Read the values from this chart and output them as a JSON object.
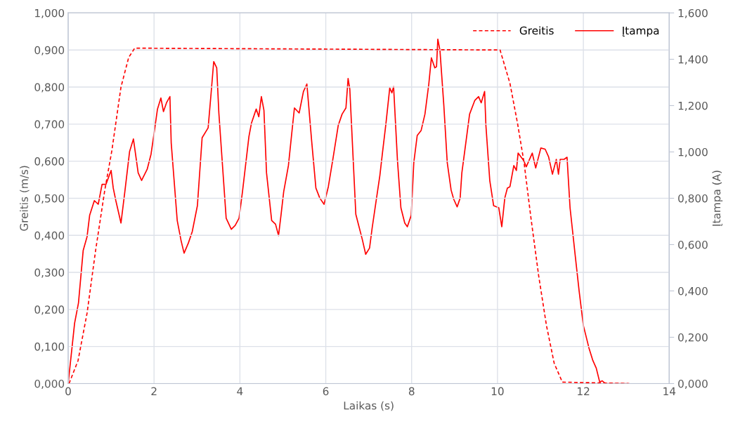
{
  "chart_data": {
    "type": "line",
    "xlabel": "Laikas (s)",
    "ylabel": "Greitis (m/s)",
    "y2label": "Įtampa (A)",
    "xlim": [
      0,
      14
    ],
    "xticks": [
      0,
      2,
      4,
      6,
      8,
      10,
      12,
      14
    ],
    "ylim": [
      0,
      1
    ],
    "yticks": [
      {
        "value": 0,
        "label": "0,000"
      },
      {
        "value": 0.1,
        "label": "0,100"
      },
      {
        "value": 0.2,
        "label": "0,200"
      },
      {
        "value": 0.3,
        "label": "0,300"
      },
      {
        "value": 0.4,
        "label": "0,400"
      },
      {
        "value": 0.5,
        "label": "0,500"
      },
      {
        "value": 0.6,
        "label": "0,600"
      },
      {
        "value": 0.7,
        "label": "0,700"
      },
      {
        "value": 0.8,
        "label": "0,800"
      },
      {
        "value": 0.9,
        "label": "0,900"
      },
      {
        "value": 1,
        "label": "1,000"
      }
    ],
    "y2lim": [
      0,
      1.6
    ],
    "y2ticks": [
      {
        "value": 0,
        "label": "0,000"
      },
      {
        "value": 0.2,
        "label": "0,200"
      },
      {
        "value": 0.4,
        "label": "0,400"
      },
      {
        "value": 0.6,
        "label": "0,600"
      },
      {
        "value": 0.8,
        "label": "0,800"
      },
      {
        "value": 1,
        "label": "1,000"
      },
      {
        "value": 1.2,
        "label": "1,200"
      },
      {
        "value": 1.4,
        "label": "1,400"
      },
      {
        "value": 1.6,
        "label": "1,600"
      }
    ],
    "grid": true,
    "legend": "top right",
    "series": [
      {
        "name": "Greitis",
        "color": "#ff0000",
        "line_style": "dashed",
        "x": [
          0.02,
          0.23,
          0.44,
          0.64,
          0.85,
          1.02,
          1.23,
          1.41,
          1.55,
          10.06,
          10.29,
          10.47,
          10.62,
          10.78,
          10.96,
          11.14,
          11.32,
          11.51,
          13.06
        ],
        "values": [
          0.0,
          0.062,
          0.19,
          0.36,
          0.52,
          0.63,
          0.8,
          0.88,
          0.905,
          0.9,
          0.81,
          0.7,
          0.595,
          0.446,
          0.29,
          0.157,
          0.055,
          0.004,
          0.0
        ]
      },
      {
        "name": "Įtampa",
        "color": "#ff0000",
        "line_style": "solid",
        "axis": "y2",
        "x": [
          0.0,
          0.15,
          0.24,
          0.35,
          0.44,
          0.5,
          0.61,
          0.7,
          0.79,
          0.88,
          1.0,
          1.05,
          1.11,
          1.23,
          1.32,
          1.43,
          1.52,
          1.63,
          1.71,
          1.84,
          1.93,
          1.99,
          2.08,
          2.16,
          2.22,
          2.29,
          2.37,
          2.4,
          2.54,
          2.63,
          2.7,
          2.8,
          2.89,
          3.01,
          3.12,
          3.26,
          3.33,
          3.39,
          3.46,
          3.51,
          3.68,
          3.8,
          3.89,
          3.98,
          4.06,
          4.21,
          4.27,
          4.38,
          4.44,
          4.5,
          4.56,
          4.62,
          4.74,
          4.83,
          4.9,
          4.96,
          5.02,
          5.13,
          5.2,
          5.27,
          5.38,
          5.48,
          5.56,
          5.67,
          5.77,
          5.86,
          5.96,
          6.06,
          6.17,
          6.29,
          6.38,
          6.47,
          6.52,
          6.56,
          6.7,
          6.85,
          6.93,
          7.02,
          7.08,
          7.17,
          7.26,
          7.32,
          7.4,
          7.49,
          7.54,
          7.58,
          7.67,
          7.75,
          7.84,
          7.9,
          7.99,
          8.05,
          8.13,
          8.22,
          8.31,
          8.4,
          8.46,
          8.54,
          8.58,
          8.61,
          8.66,
          8.75,
          8.83,
          8.92,
          8.98,
          9.06,
          9.13,
          9.17,
          9.27,
          9.35,
          9.47,
          9.56,
          9.62,
          9.7,
          9.73,
          9.82,
          9.91,
          10.03,
          10.1,
          10.17,
          10.23,
          10.29,
          10.38,
          10.44,
          10.48,
          10.61,
          10.67,
          10.81,
          10.89,
          11.01,
          11.11,
          11.19,
          11.28,
          11.37,
          11.42,
          11.46,
          11.55,
          11.62,
          11.69,
          11.81,
          11.9,
          12.0,
          12.13,
          12.22,
          12.3,
          12.38,
          12.44,
          12.51,
          13.06
        ],
        "values": [
          0,
          0.261,
          0.348,
          0.575,
          0.634,
          0.726,
          0.79,
          0.774,
          0.86,
          0.86,
          0.92,
          0.844,
          0.79,
          0.693,
          0.828,
          1.001,
          1.056,
          0.91,
          0.877,
          0.925,
          0.99,
          1.066,
          1.185,
          1.233,
          1.174,
          1.212,
          1.239,
          1.039,
          0.704,
          0.617,
          0.563,
          0.607,
          0.656,
          0.768,
          1.061,
          1.104,
          1.255,
          1.39,
          1.363,
          1.168,
          0.714,
          0.666,
          0.683,
          0.714,
          0.828,
          1.066,
          1.125,
          1.185,
          1.152,
          1.239,
          1.18,
          0.91,
          0.704,
          0.688,
          0.639,
          0.731,
          0.828,
          0.941,
          1.066,
          1.19,
          1.168,
          1.261,
          1.293,
          1.05,
          0.844,
          0.801,
          0.774,
          0.85,
          0.974,
          1.114,
          1.163,
          1.19,
          1.317,
          1.271,
          0.731,
          0.623,
          0.558,
          0.585,
          0.671,
          0.785,
          0.898,
          0.995,
          1.12,
          1.276,
          1.255,
          1.282,
          0.963,
          0.759,
          0.693,
          0.677,
          0.726,
          0.953,
          1.071,
          1.092,
          1.163,
          1.293,
          1.406,
          1.363,
          1.368,
          1.487,
          1.438,
          1.201,
          0.953,
          0.835,
          0.796,
          0.763,
          0.801,
          0.91,
          1.05,
          1.163,
          1.222,
          1.239,
          1.212,
          1.261,
          1.114,
          0.877,
          0.768,
          0.759,
          0.677,
          0.801,
          0.844,
          0.85,
          0.941,
          0.92,
          0.995,
          0.963,
          0.936,
          0.995,
          0.931,
          1.017,
          1.012,
          0.979,
          0.904,
          0.968,
          0.904,
          0.968,
          0.968,
          0.977,
          0.759,
          0.553,
          0.402,
          0.251,
          0.154,
          0.1,
          0.067,
          0.007,
          0.012,
          0,
          0
        ]
      }
    ]
  }
}
